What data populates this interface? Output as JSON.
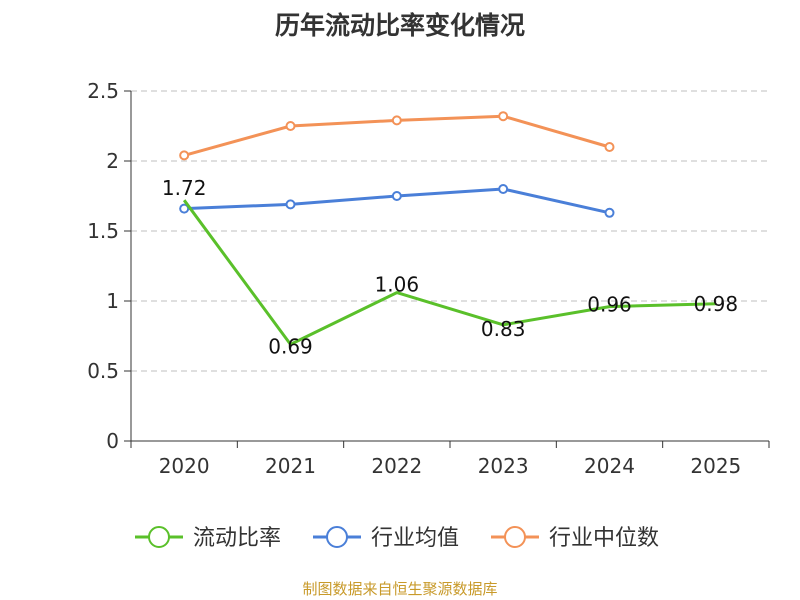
{
  "chart_data": {
    "type": "line",
    "title": "历年流动比率变化情况",
    "categories": [
      "2020",
      "2021",
      "2022",
      "2023",
      "2024",
      "2025"
    ],
    "ylim": [
      0,
      2.5
    ],
    "yticks": [
      0,
      0.5,
      1,
      1.5,
      2,
      2.5
    ],
    "ytick_labels": [
      "0",
      "0.5",
      "1",
      "1.5",
      "2",
      "2.5"
    ],
    "grid": true,
    "legend_position": "bottom",
    "series": [
      {
        "name": "流动比率",
        "color": "#5ac02a",
        "values": [
          1.72,
          0.69,
          1.06,
          0.83,
          0.96,
          0.98
        ],
        "labels": [
          "1.72",
          "0.69",
          "1.06",
          "0.83",
          "0.96",
          "0.98"
        ],
        "show_markers": false
      },
      {
        "name": "行业均值",
        "color": "#4a7fd8",
        "values": [
          1.66,
          1.69,
          1.75,
          1.8,
          1.63,
          null
        ],
        "show_markers": true
      },
      {
        "name": "行业中位数",
        "color": "#f39257",
        "values": [
          2.04,
          2.25,
          2.29,
          2.32,
          2.1,
          null
        ],
        "show_markers": true
      }
    ]
  },
  "source": "制图数据来自恒生聚源数据库"
}
